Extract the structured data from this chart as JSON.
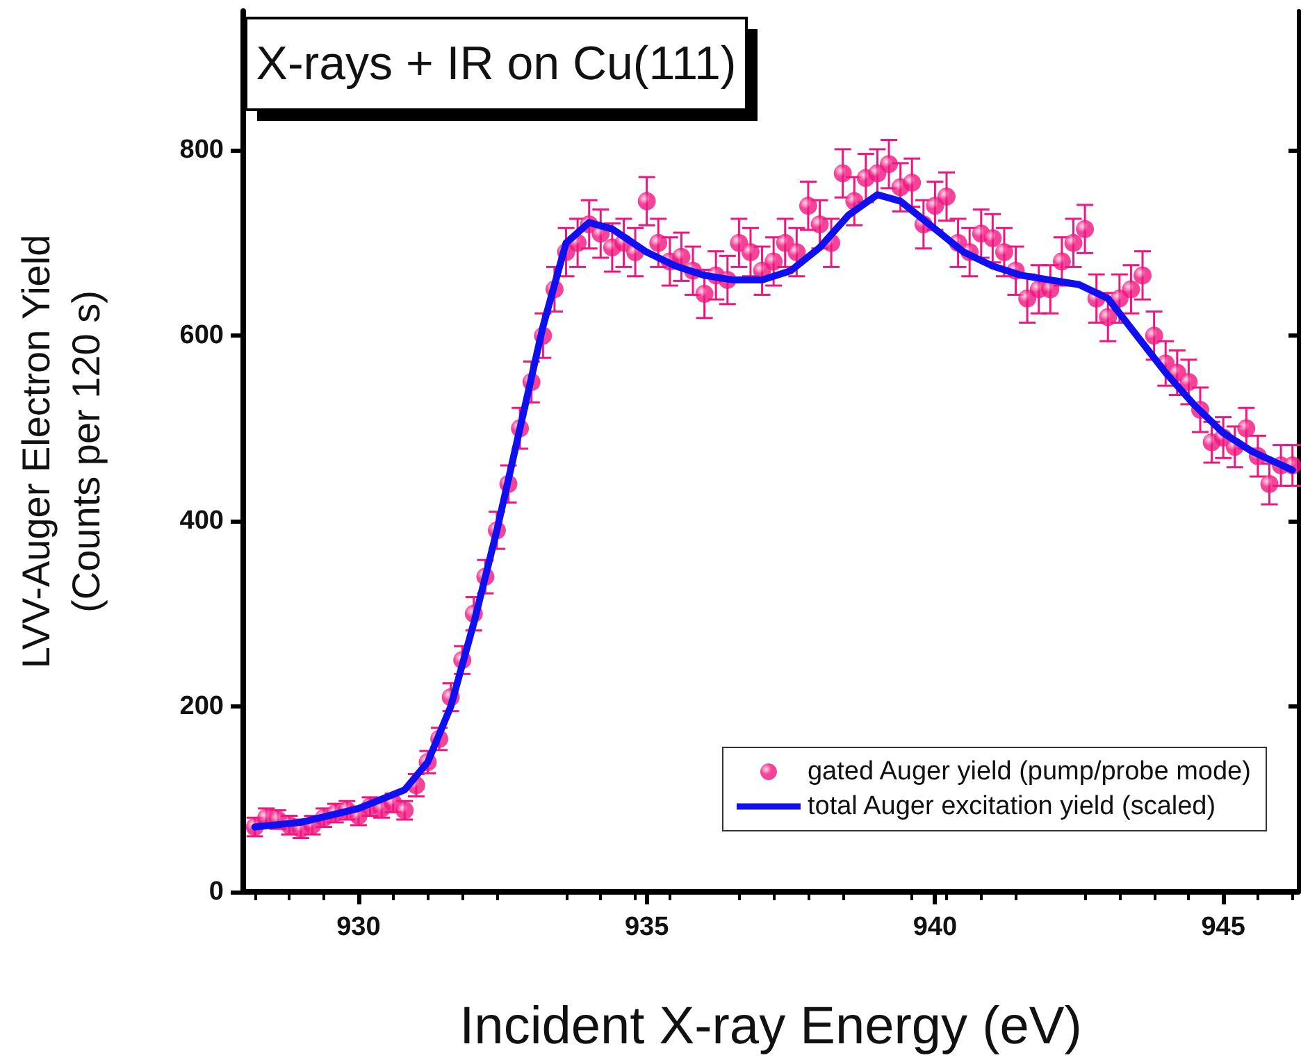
{
  "chart_data": {
    "type": "scatter",
    "title": "X-rays + IR on Cu(111)",
    "xlabel": "Incident X-ray Energy (eV)",
    "ylabel": "LVV-Auger Electron Yield\n(Counts per 120 s)",
    "xlim": [
      928,
      946.3
    ],
    "xticks": [
      930,
      935,
      940,
      945
    ],
    "ylim": [
      0,
      950
    ],
    "yticks": [
      0,
      200,
      400,
      600,
      800
    ],
    "grid": false,
    "legend": "bottom right",
    "series": [
      {
        "name": "gated Auger yield (pump/probe mode)",
        "color": "#f0157f",
        "marker": "circle",
        "x": [
          928.2,
          928.4,
          928.6,
          928.8,
          929.0,
          929.2,
          929.4,
          929.6,
          929.8,
          930.0,
          930.2,
          930.4,
          930.6,
          930.8,
          931.0,
          931.2,
          931.4,
          931.6,
          931.8,
          932.0,
          932.2,
          932.4,
          932.6,
          932.8,
          933.0,
          933.2,
          933.4,
          933.6,
          933.8,
          934.0,
          934.2,
          934.4,
          934.6,
          934.8,
          935.0,
          935.2,
          935.4,
          935.6,
          935.8,
          936.0,
          936.2,
          936.4,
          936.6,
          936.8,
          937.0,
          937.2,
          937.4,
          937.6,
          937.8,
          938.0,
          938.2,
          938.4,
          938.6,
          938.8,
          939.0,
          939.2,
          939.4,
          939.6,
          939.8,
          940.0,
          940.2,
          940.4,
          940.6,
          940.8,
          941.0,
          941.2,
          941.4,
          941.6,
          941.8,
          942.0,
          942.2,
          942.4,
          942.6,
          942.8,
          943.0,
          943.2,
          943.4,
          943.6,
          943.8,
          944.0,
          944.2,
          944.4,
          944.6,
          944.8,
          945.0,
          945.2,
          945.4,
          945.6,
          945.8,
          946.0,
          946.2
        ],
        "values": [
          70,
          80,
          78,
          72,
          68,
          72,
          80,
          85,
          88,
          82,
          92,
          90,
          96,
          88,
          115,
          140,
          165,
          210,
          250,
          300,
          340,
          390,
          440,
          500,
          550,
          600,
          650,
          690,
          700,
          720,
          710,
          695,
          700,
          690,
          745,
          700,
          680,
          685,
          670,
          645,
          665,
          660,
          700,
          690,
          670,
          680,
          700,
          690,
          740,
          720,
          700,
          775,
          745,
          770,
          775,
          785,
          760,
          765,
          720,
          740,
          750,
          700,
          690,
          710,
          705,
          690,
          670,
          640,
          650,
          650,
          680,
          700,
          715,
          640,
          620,
          640,
          650,
          665,
          600,
          570,
          560,
          550,
          520,
          485,
          490,
          480,
          500,
          470,
          440,
          460,
          460
        ],
        "errors": [
          10,
          10,
          10,
          10,
          10,
          10,
          10,
          10,
          10,
          10,
          10,
          10,
          10,
          10,
          12,
          12,
          12,
          15,
          15,
          18,
          18,
          20,
          20,
          22,
          22,
          24,
          24,
          26,
          26,
          26,
          26,
          26,
          26,
          26,
          26,
          26,
          26,
          26,
          26,
          26,
          26,
          26,
          26,
          26,
          26,
          26,
          26,
          26,
          26,
          26,
          26,
          26,
          26,
          26,
          26,
          26,
          26,
          26,
          26,
          26,
          26,
          26,
          26,
          26,
          26,
          26,
          26,
          26,
          26,
          26,
          26,
          26,
          26,
          26,
          26,
          26,
          26,
          26,
          26,
          24,
          24,
          24,
          24,
          22,
          22,
          22,
          22,
          22,
          22,
          22,
          22
        ]
      },
      {
        "name": "total Auger excitation yield (scaled)",
        "type": "line",
        "color": "#1010ee",
        "marker": "none",
        "line_style": "solid",
        "x": [
          928.2,
          929,
          930,
          930.8,
          931.2,
          931.6,
          932,
          932.4,
          932.8,
          933.2,
          933.6,
          934,
          934.4,
          935,
          935.5,
          936,
          936.5,
          937,
          937.5,
          938,
          938.5,
          939,
          939.4,
          940,
          940.5,
          941,
          941.5,
          942,
          942.5,
          943,
          943.5,
          944,
          944.5,
          945,
          945.5,
          946.2
        ],
        "values": [
          70,
          75,
          90,
          110,
          140,
          200,
          290,
          390,
          500,
          610,
          700,
          722,
          715,
          690,
          675,
          665,
          660,
          660,
          670,
          695,
          730,
          752,
          745,
          715,
          690,
          675,
          665,
          660,
          655,
          640,
          600,
          560,
          525,
          495,
          475,
          455
        ]
      }
    ]
  }
}
